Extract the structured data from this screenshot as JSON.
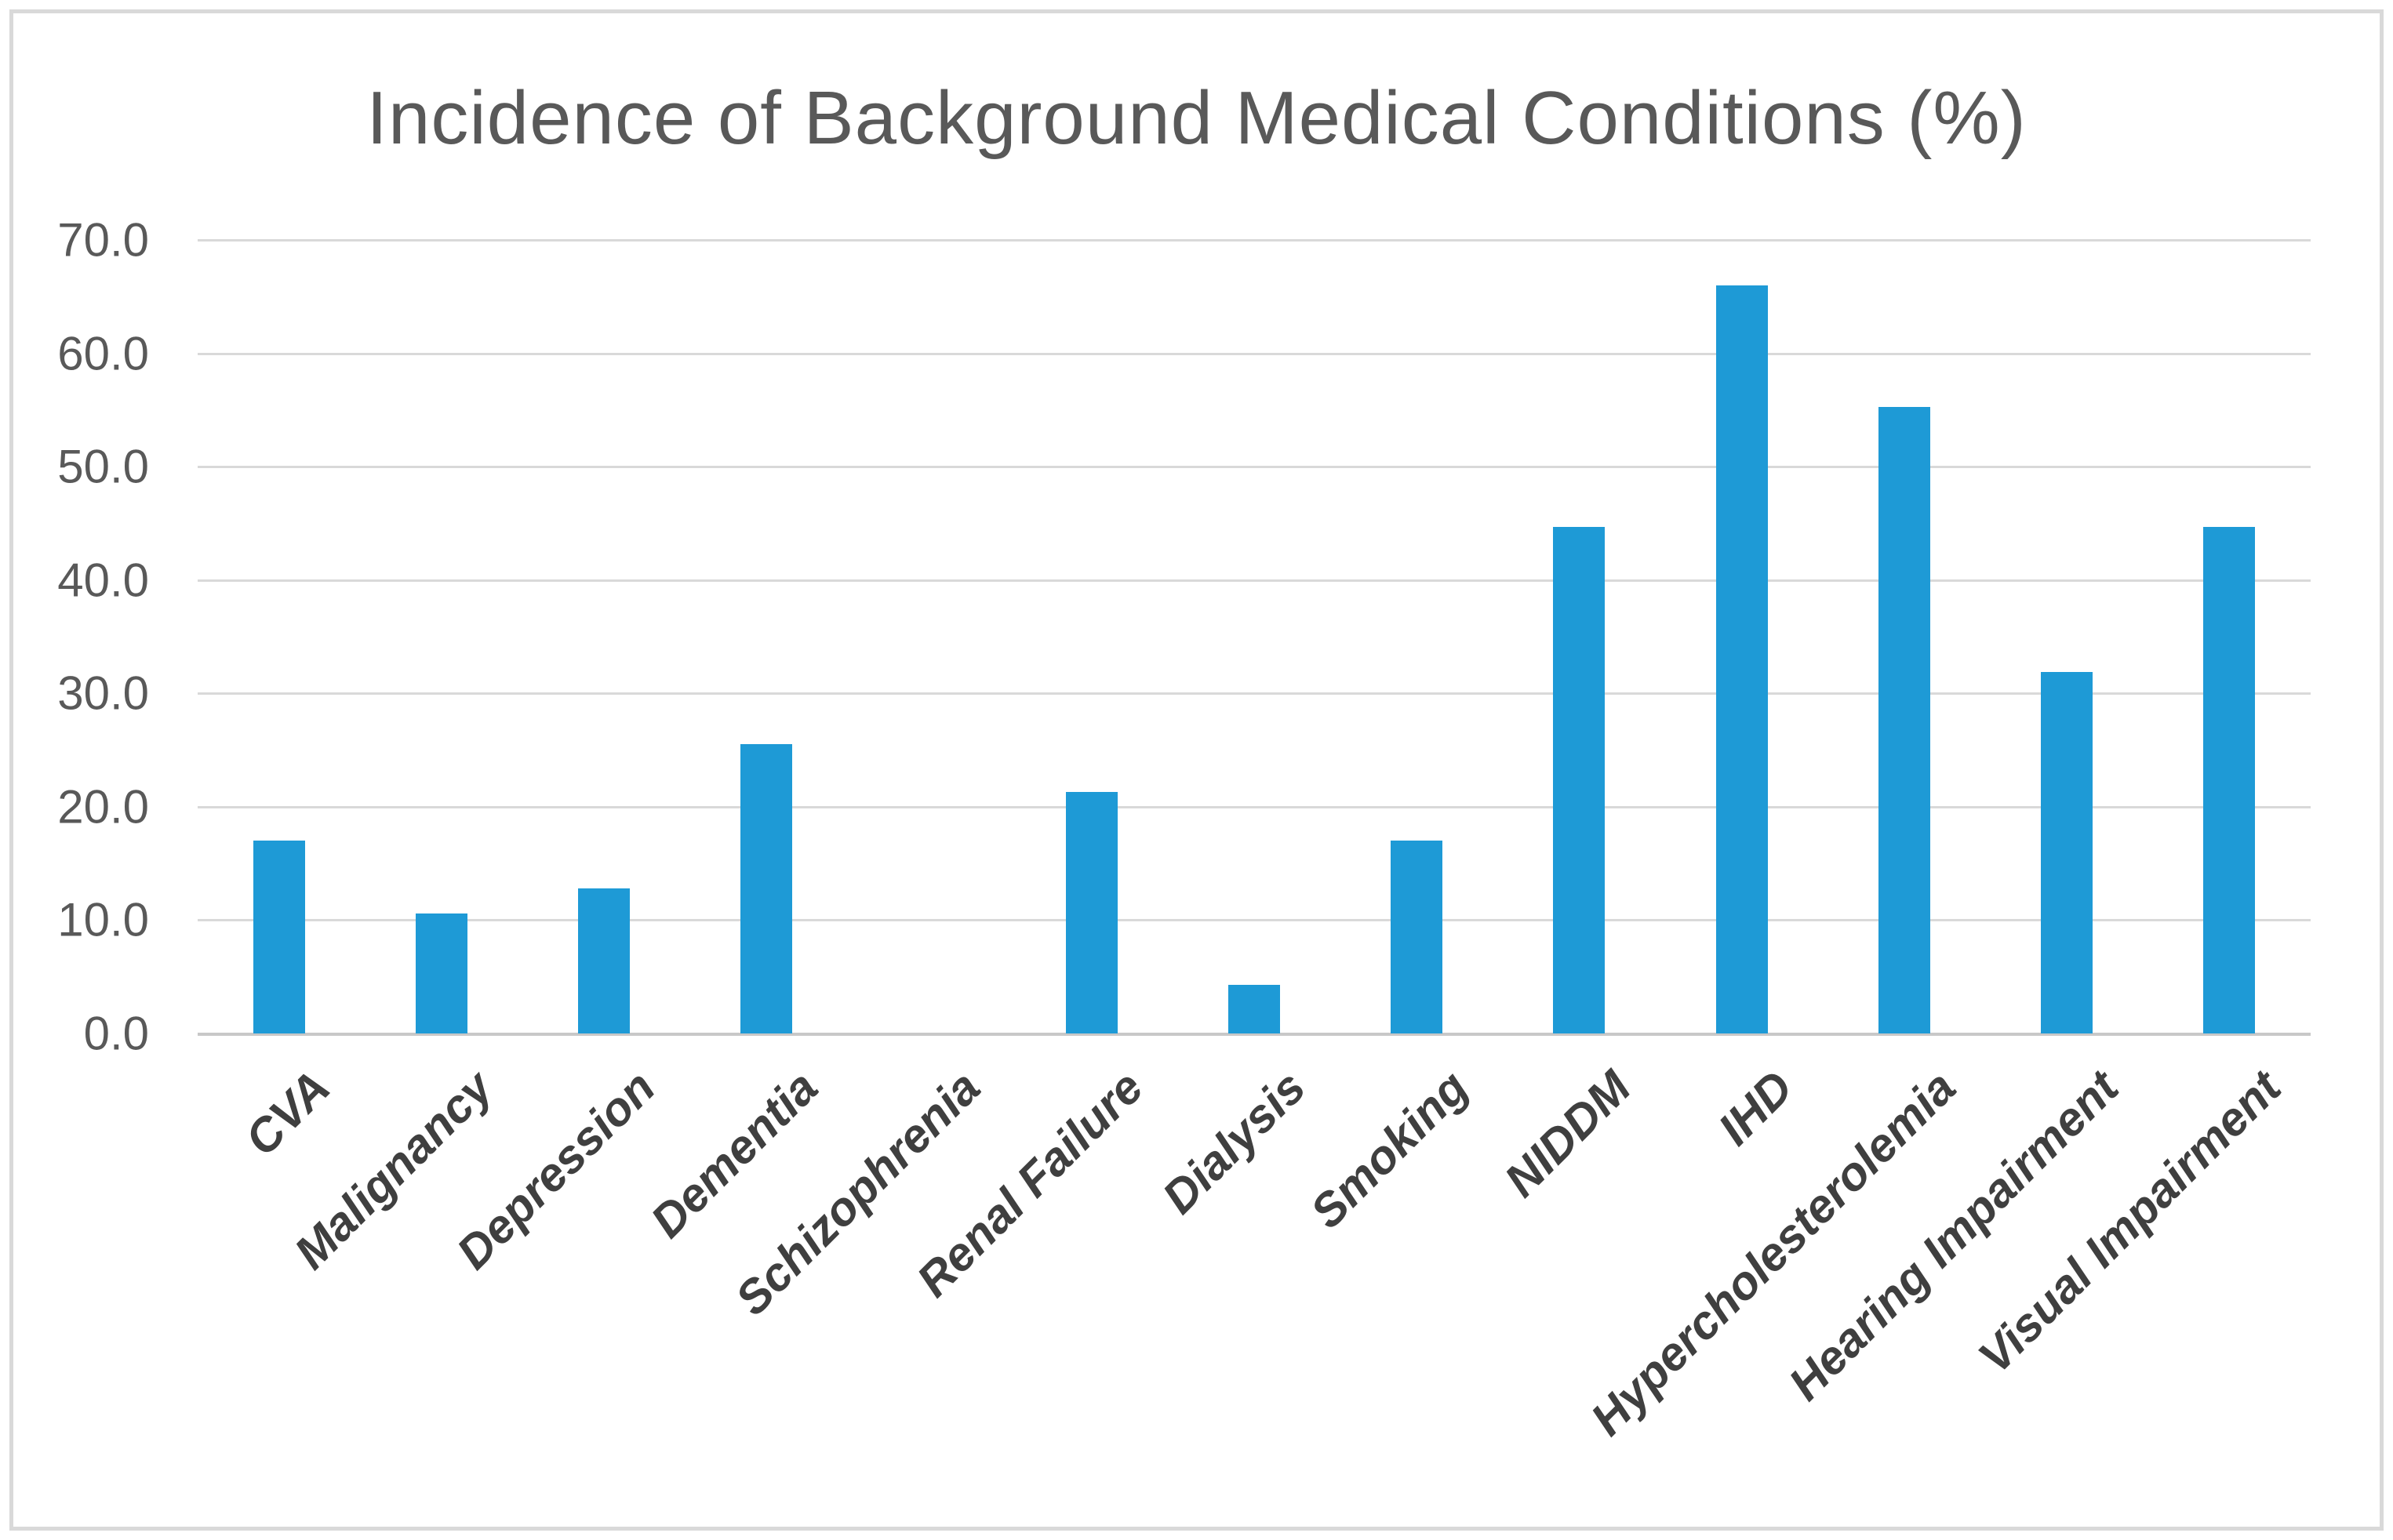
{
  "chart_data": {
    "type": "bar",
    "title": "Incidence of Background Medical Conditions (%)",
    "categories": [
      "CVA",
      "Malignancy",
      "Depression",
      "Dementia",
      "Schizophrenia",
      "Renal Failure",
      "Dialysis",
      "Smoking",
      "NIDDM",
      "IHD",
      "Hypercholesterolemia",
      "Hearing Impairment",
      "Visual Impairment"
    ],
    "values": [
      17.0,
      10.6,
      12.8,
      25.5,
      0.0,
      21.3,
      4.3,
      17.0,
      44.7,
      66.0,
      55.3,
      31.9,
      44.7
    ],
    "ylim": [
      0,
      70
    ],
    "ytick_step": 10,
    "ytick_labels": [
      "0.0",
      "10.0",
      "20.0",
      "30.0",
      "40.0",
      "50.0",
      "60.0",
      "70.0"
    ],
    "grid": true,
    "legend_position": "none",
    "colors": {
      "bar": "#1E9AD6",
      "gridline": "#D9D9D9",
      "axis_line": "#C8C8C8",
      "title_text": "#595959",
      "ytick_text": "#595959",
      "xtick_text": "#3F3F3F",
      "frame_border": "#D9D9D9",
      "background": "#FFFFFF"
    }
  }
}
